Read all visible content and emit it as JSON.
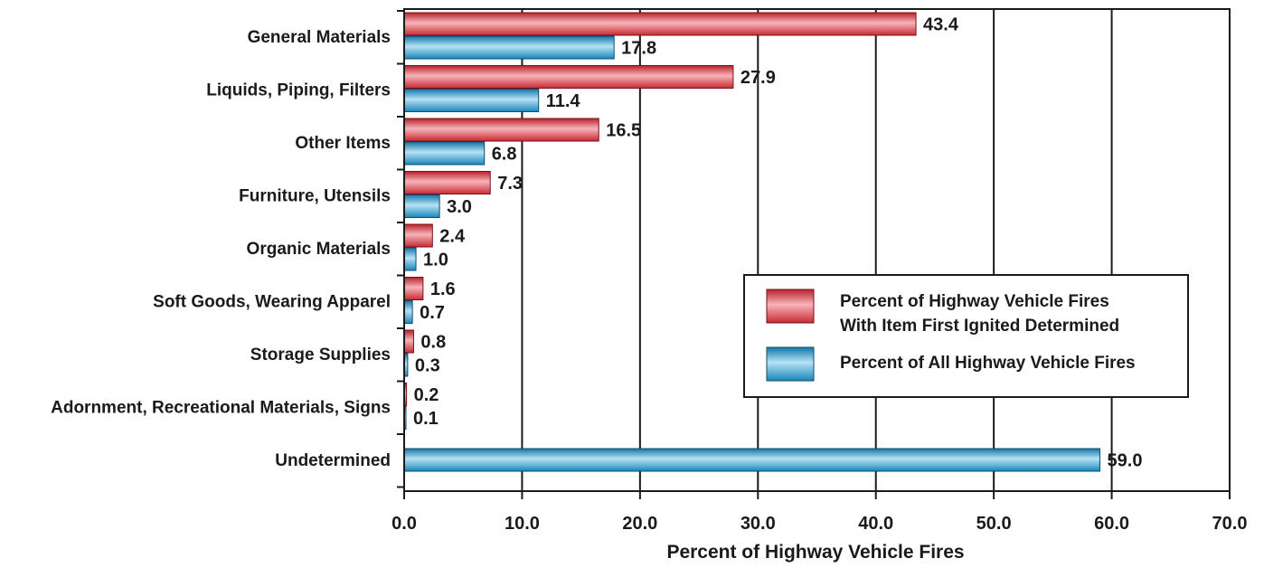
{
  "chart_data": {
    "type": "bar",
    "orientation": "horizontal",
    "categories": [
      "General Materials",
      "Liquids, Piping, Filters",
      "Other Items",
      "Furniture, Utensils",
      "Organic Materials",
      "Soft Goods, Wearing Apparel",
      "Storage Supplies",
      "Adornment, Recreational Materials, Signs",
      "Undetermined"
    ],
    "series": [
      {
        "name": "Percent of Highway Vehicle Fires With Item First Ignited Determined",
        "legend_lines": [
          "Percent of Highway Vehicle Fires",
          "With Item First Ignited Determined"
        ],
        "color": "#d9464f",
        "values": [
          43.4,
          27.9,
          16.5,
          7.3,
          2.4,
          1.6,
          0.8,
          0.2,
          null
        ],
        "labels": [
          "43.4",
          "27.9",
          "16.5",
          "7.3",
          "2.4",
          "1.6",
          "0.8",
          "0.2",
          ""
        ]
      },
      {
        "name": "Percent of All Highway Vehicle Fires",
        "legend_lines": [
          "Percent of All Highway Vehicle Fires"
        ],
        "color": "#2e93c2",
        "values": [
          17.8,
          11.4,
          6.8,
          3.0,
          1.0,
          0.7,
          0.3,
          0.1,
          59.0
        ],
        "labels": [
          "17.8",
          "11.4",
          "6.8",
          "3.0",
          "1.0",
          "0.7",
          "0.3",
          "0.1",
          "59.0"
        ]
      }
    ],
    "xlabel": "Percent of Highway Vehicle Fires",
    "xlim": [
      0,
      70
    ],
    "xticks": [
      "0.0",
      "10.0",
      "20.0",
      "30.0",
      "40.0",
      "50.0",
      "60.0",
      "70.0"
    ],
    "grid": "vertical",
    "legend_position": "right-middle"
  }
}
